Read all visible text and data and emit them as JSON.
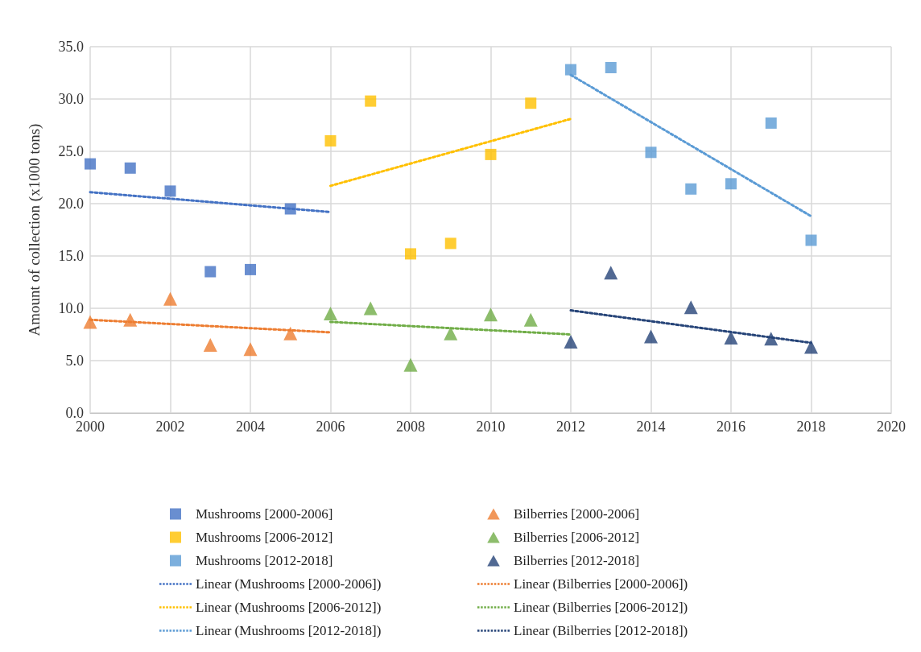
{
  "chart_data": {
    "type": "scatter",
    "ylabel": "Amount of collection (x1000 tons)",
    "xlim": [
      2000,
      2020
    ],
    "xticks": [
      2000,
      2002,
      2004,
      2006,
      2008,
      2010,
      2012,
      2014,
      2016,
      2018,
      2020
    ],
    "ylim": [
      0,
      35
    ],
    "yticks": [
      {
        "value": 0,
        "label": "0.0"
      },
      {
        "value": 5,
        "label": "5.0"
      },
      {
        "value": 10,
        "label": "10.0"
      },
      {
        "value": 15,
        "label": "15.0"
      },
      {
        "value": 20,
        "label": "20.0"
      },
      {
        "value": 25,
        "label": "25.0"
      },
      {
        "value": 30,
        "label": "30.0"
      },
      {
        "value": 35,
        "label": "35.0"
      }
    ],
    "grid": true,
    "legend": "bottom",
    "series": [
      {
        "name": "Mushrooms [2000-2006]",
        "marker": "square",
        "color": "#4472c4",
        "x": [
          2000,
          2001,
          2002,
          2003,
          2004,
          2005
        ],
        "values": [
          23.8,
          23.4,
          21.2,
          13.5,
          13.7,
          19.5
        ]
      },
      {
        "name": "Bilberries [2000-2006]",
        "marker": "triangle",
        "color": "#ed7d31",
        "x": [
          2000,
          2001,
          2002,
          2003,
          2004,
          2005
        ],
        "values": [
          8.7,
          8.9,
          10.9,
          6.5,
          6.1,
          7.6
        ]
      },
      {
        "name": "Mushrooms [2006-2012]",
        "marker": "square",
        "color": "#ffc000",
        "x": [
          2006,
          2007,
          2008,
          2009,
          2010,
          2011
        ],
        "values": [
          26.0,
          29.8,
          15.2,
          16.2,
          24.7,
          29.6
        ]
      },
      {
        "name": "Bilberries [2006-2012]",
        "marker": "triangle",
        "color": "#70ad47",
        "x": [
          2006,
          2007,
          2008,
          2009,
          2010,
          2011
        ],
        "values": [
          9.5,
          10.0,
          4.6,
          7.6,
          9.4,
          8.9
        ]
      },
      {
        "name": "Mushrooms [2012-2018]",
        "marker": "square",
        "color": "#5b9bd5",
        "x": [
          2012,
          2013,
          2014,
          2015,
          2016,
          2017,
          2018
        ],
        "values": [
          32.8,
          33.0,
          24.9,
          21.4,
          21.9,
          27.7,
          16.5
        ]
      },
      {
        "name": "Bilberries [2012-2018]",
        "marker": "triangle",
        "color": "#264478",
        "x": [
          2012,
          2013,
          2014,
          2015,
          2016,
          2017,
          2018
        ],
        "values": [
          6.8,
          13.4,
          7.3,
          10.1,
          7.2,
          7.1,
          6.3
        ]
      },
      {
        "name": "Linear (Mushrooms [2000-2006])",
        "type": "line",
        "marker": "none",
        "line_style": "dotted",
        "color": "#4472c4",
        "x": [
          2000,
          2006
        ],
        "values": [
          21.1,
          19.2
        ]
      },
      {
        "name": "Linear (Bilberries [2000-2006])",
        "type": "line",
        "marker": "none",
        "line_style": "dotted",
        "color": "#ed7d31",
        "x": [
          2000,
          2006
        ],
        "values": [
          8.9,
          7.7
        ]
      },
      {
        "name": "Linear (Mushrooms [2006-2012])",
        "type": "line",
        "marker": "none",
        "line_style": "dotted",
        "color": "#ffc000",
        "x": [
          2006,
          2012
        ],
        "values": [
          21.7,
          28.1
        ]
      },
      {
        "name": "Linear (Bilberries [2006-2012])",
        "type": "line",
        "marker": "none",
        "line_style": "dotted",
        "color": "#70ad47",
        "x": [
          2006,
          2012
        ],
        "values": [
          8.7,
          7.5
        ]
      },
      {
        "name": "Linear (Mushrooms [2012-2018])",
        "type": "line",
        "marker": "none",
        "line_style": "dotted",
        "color": "#5b9bd5",
        "x": [
          2012,
          2018
        ],
        "values": [
          32.3,
          18.8
        ]
      },
      {
        "name": "Linear (Bilberries [2012-2018])",
        "type": "line",
        "marker": "none",
        "line_style": "dotted",
        "color": "#264478",
        "x": [
          2012,
          2018
        ],
        "values": [
          9.8,
          6.7
        ]
      }
    ]
  }
}
